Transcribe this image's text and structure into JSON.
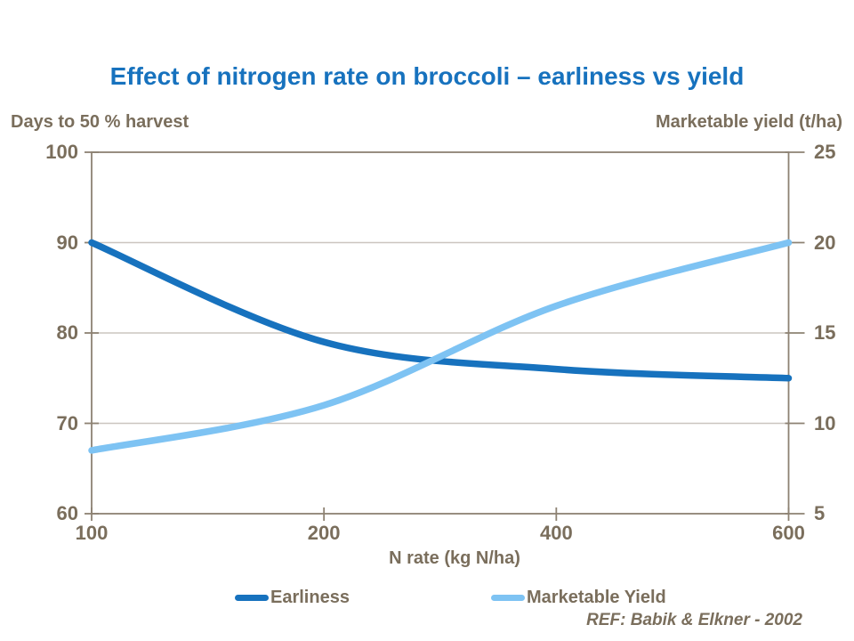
{
  "title": "Effect of nitrogen rate on broccoli – earliness vs yield",
  "reference": "REF: Babik & Elkner - 2002",
  "colors": {
    "title_blue": "#1772BE",
    "earliness_line": "#1772BE",
    "yield_line": "#7EC3F3",
    "axis_line": "#8D8273",
    "gridline": "#CBC5BF",
    "text_brown": "#7A6E5C",
    "background": "#FFFFFF"
  },
  "legend": {
    "items": [
      {
        "label": "Earliness"
      },
      {
        "label": "Marketable Yield"
      }
    ]
  },
  "chart_data": {
    "type": "line",
    "x_axis_label": "N rate (kg N/ha)",
    "categories": [
      "100",
      "200",
      "400",
      "600"
    ],
    "left_axis": {
      "title": "Days to 50 % harvest",
      "ticks": [
        100,
        90,
        80,
        70,
        60
      ],
      "range": [
        60,
        100
      ]
    },
    "right_axis": {
      "title": "Marketable yield (t/ha)",
      "ticks": [
        25,
        20,
        15,
        10,
        5
      ],
      "range": [
        5,
        25
      ]
    },
    "series": [
      {
        "name": "Earliness",
        "axis": "left",
        "color": "#1772BE",
        "values": [
          90,
          79,
          76,
          75
        ]
      },
      {
        "name": "Marketable Yield",
        "axis": "right",
        "color": "#7EC3F3",
        "values": [
          8.5,
          11,
          16.5,
          20
        ]
      }
    ],
    "grid": true,
    "legend_position": "bottom",
    "smoothed_lines": true
  }
}
